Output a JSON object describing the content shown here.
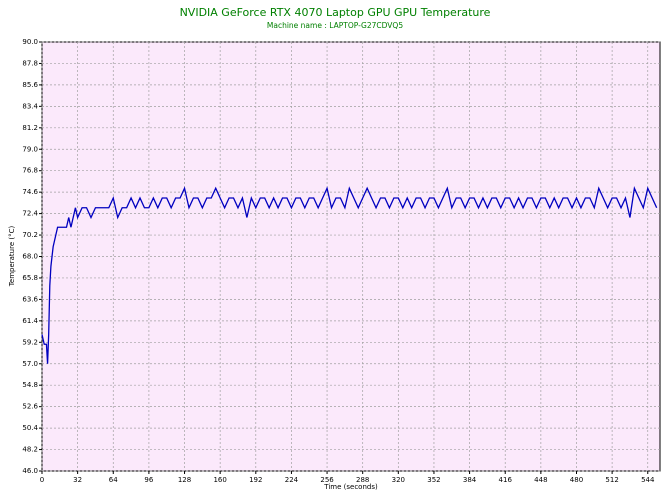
{
  "chart_data": {
    "type": "line",
    "title": "NVIDIA GeForce RTX 4070 Laptop GPU GPU Temperature",
    "subtitle": "Machine name : LAPTOP-G27CDVQ5",
    "x_label": "Time (seconds)",
    "y_label": "Temperature (°C)",
    "color": "#0000c0",
    "grid": true,
    "xlim": [
      0,
      555
    ],
    "ylim": [
      46,
      90
    ],
    "xticks": [
      0,
      32,
      64,
      96,
      128,
      160,
      192,
      224,
      256,
      288,
      320,
      352,
      384,
      416,
      448,
      480,
      512,
      544
    ],
    "yticks": [
      {
        "value": 46,
        "label": "46.0"
      },
      48.2,
      50.4,
      52.6,
      54.8,
      {
        "value": 57,
        "label": "57.0"
      },
      59.2,
      61.4,
      63.6,
      65.8,
      {
        "value": 68,
        "label": "68.0"
      },
      70.2,
      72.4,
      74.6,
      76.8,
      {
        "value": 79,
        "label": "79.0"
      },
      81.2,
      83.4,
      85.6,
      87.8,
      {
        "value": 90,
        "label": "90.0"
      }
    ],
    "x": [
      0,
      2,
      4,
      5,
      6,
      7,
      8,
      9,
      10,
      12,
      14,
      16,
      18,
      20,
      22,
      24,
      26,
      28,
      30,
      32,
      36,
      40,
      44,
      48,
      52,
      56,
      60,
      64,
      68,
      72,
      76,
      80,
      84,
      88,
      92,
      96,
      100,
      104,
      108,
      112,
      116,
      120,
      124,
      128,
      132,
      136,
      140,
      144,
      148,
      152,
      156,
      160,
      164,
      168,
      172,
      176,
      180,
      184,
      188,
      192,
      196,
      200,
      204,
      208,
      212,
      216,
      220,
      224,
      228,
      232,
      236,
      240,
      244,
      248,
      252,
      256,
      260,
      264,
      268,
      272,
      276,
      280,
      284,
      288,
      292,
      296,
      300,
      304,
      308,
      312,
      316,
      320,
      324,
      328,
      332,
      336,
      340,
      344,
      348,
      352,
      356,
      360,
      364,
      368,
      372,
      376,
      380,
      384,
      388,
      392,
      396,
      400,
      404,
      408,
      412,
      416,
      420,
      424,
      428,
      432,
      436,
      440,
      444,
      448,
      452,
      456,
      460,
      464,
      468,
      472,
      476,
      480,
      484,
      488,
      492,
      496,
      500,
      504,
      508,
      512,
      516,
      520,
      524,
      528,
      532,
      536,
      540,
      544,
      548,
      552
    ],
    "values": [
      60,
      59,
      59,
      57,
      60,
      65,
      67,
      68,
      69,
      70,
      71,
      71,
      71,
      71,
      71,
      72,
      71,
      72,
      73,
      72,
      73,
      73,
      72,
      73,
      73,
      73,
      73,
      74,
      72,
      73,
      73,
      74,
      73,
      74,
      73,
      73,
      74,
      73,
      74,
      74,
      73,
      74,
      74,
      75,
      73,
      74,
      74,
      73,
      74,
      74,
      75,
      74,
      73,
      74,
      74,
      73,
      74,
      72,
      74,
      73,
      74,
      74,
      73,
      74,
      73,
      74,
      74,
      73,
      74,
      74,
      73,
      74,
      74,
      73,
      74,
      75,
      73,
      74,
      74,
      73,
      75,
      74,
      73,
      74,
      75,
      74,
      73,
      74,
      74,
      73,
      74,
      74,
      73,
      74,
      73,
      74,
      74,
      73,
      74,
      74,
      73,
      74,
      75,
      73,
      74,
      74,
      73,
      74,
      74,
      73,
      74,
      73,
      74,
      74,
      73,
      74,
      74,
      73,
      74,
      73,
      74,
      74,
      73,
      74,
      74,
      73,
      74,
      73,
      74,
      74,
      73,
      74,
      73,
      74,
      74,
      73,
      75,
      74,
      73,
      74,
      74,
      73,
      74,
      72,
      75,
      74,
      73,
      75,
      74,
      73
    ]
  }
}
